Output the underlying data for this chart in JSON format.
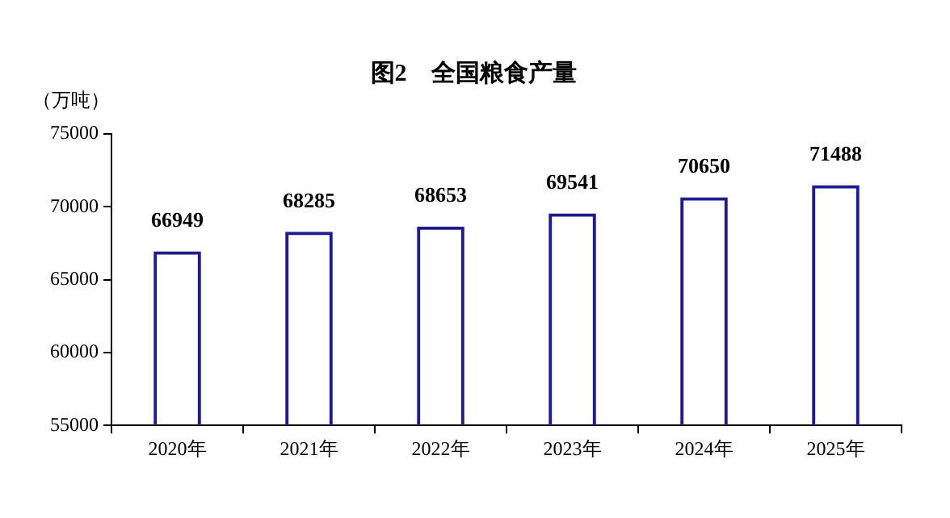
{
  "chart_data": {
    "type": "bar",
    "title": "图2　全国粮食产量",
    "ylabel": "（万吨）",
    "categories": [
      "2020年",
      "2021年",
      "2022年",
      "2023年",
      "2024年",
      "2025年"
    ],
    "values": [
      66949,
      68285,
      68653,
      69541,
      70650,
      71488
    ],
    "color": "#1c1c8c",
    "ylim": [
      55000,
      75000
    ],
    "yticks": [
      55000,
      60000,
      65000,
      70000,
      75000
    ],
    "grid": false,
    "legend": false,
    "data_labels": true
  }
}
